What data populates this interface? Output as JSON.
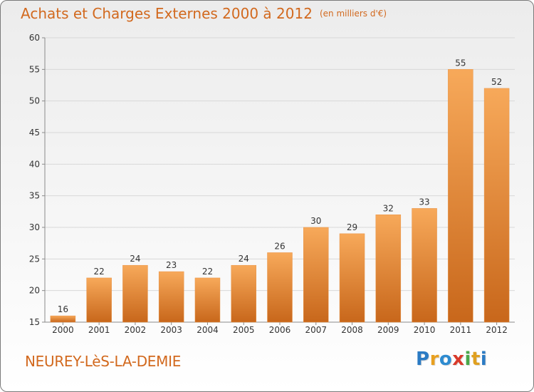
{
  "title": "Achats et Charges Externes 2000 à 2012",
  "subtitle": "(en milliers d'€)",
  "town": "NEUREY-LèS-LA-DEMIE",
  "logo": {
    "letters": [
      "P",
      "r",
      "o",
      "x",
      "i",
      "t",
      "i"
    ],
    "colors": [
      "#2b7bc4",
      "#e8a020",
      "#2e8bd0",
      "#d93a2a",
      "#4aa84a",
      "#e0a020",
      "#2b7bc4"
    ]
  },
  "colors": {
    "accent": "#d2691e",
    "bar_top": "#f7a95a",
    "bar_bottom": "#c8671b",
    "grid": "#d8d8d8",
    "axis": "#8a8a8a"
  },
  "chart_data": {
    "type": "bar",
    "title": "Achats et Charges Externes 2000 à 2012",
    "subtitle": "(en milliers d'€)",
    "xlabel": "",
    "ylabel": "",
    "categories": [
      "2000",
      "2001",
      "2002",
      "2003",
      "2004",
      "2005",
      "2006",
      "2007",
      "2008",
      "2009",
      "2010",
      "2011",
      "2012"
    ],
    "values": [
      16,
      22,
      24,
      23,
      22,
      24,
      26,
      30,
      29,
      32,
      33,
      55,
      52
    ],
    "ylim": [
      15,
      60
    ],
    "yticks": [
      15,
      20,
      25,
      30,
      35,
      40,
      45,
      50,
      55,
      60
    ],
    "grid": true,
    "data_labels": true
  }
}
